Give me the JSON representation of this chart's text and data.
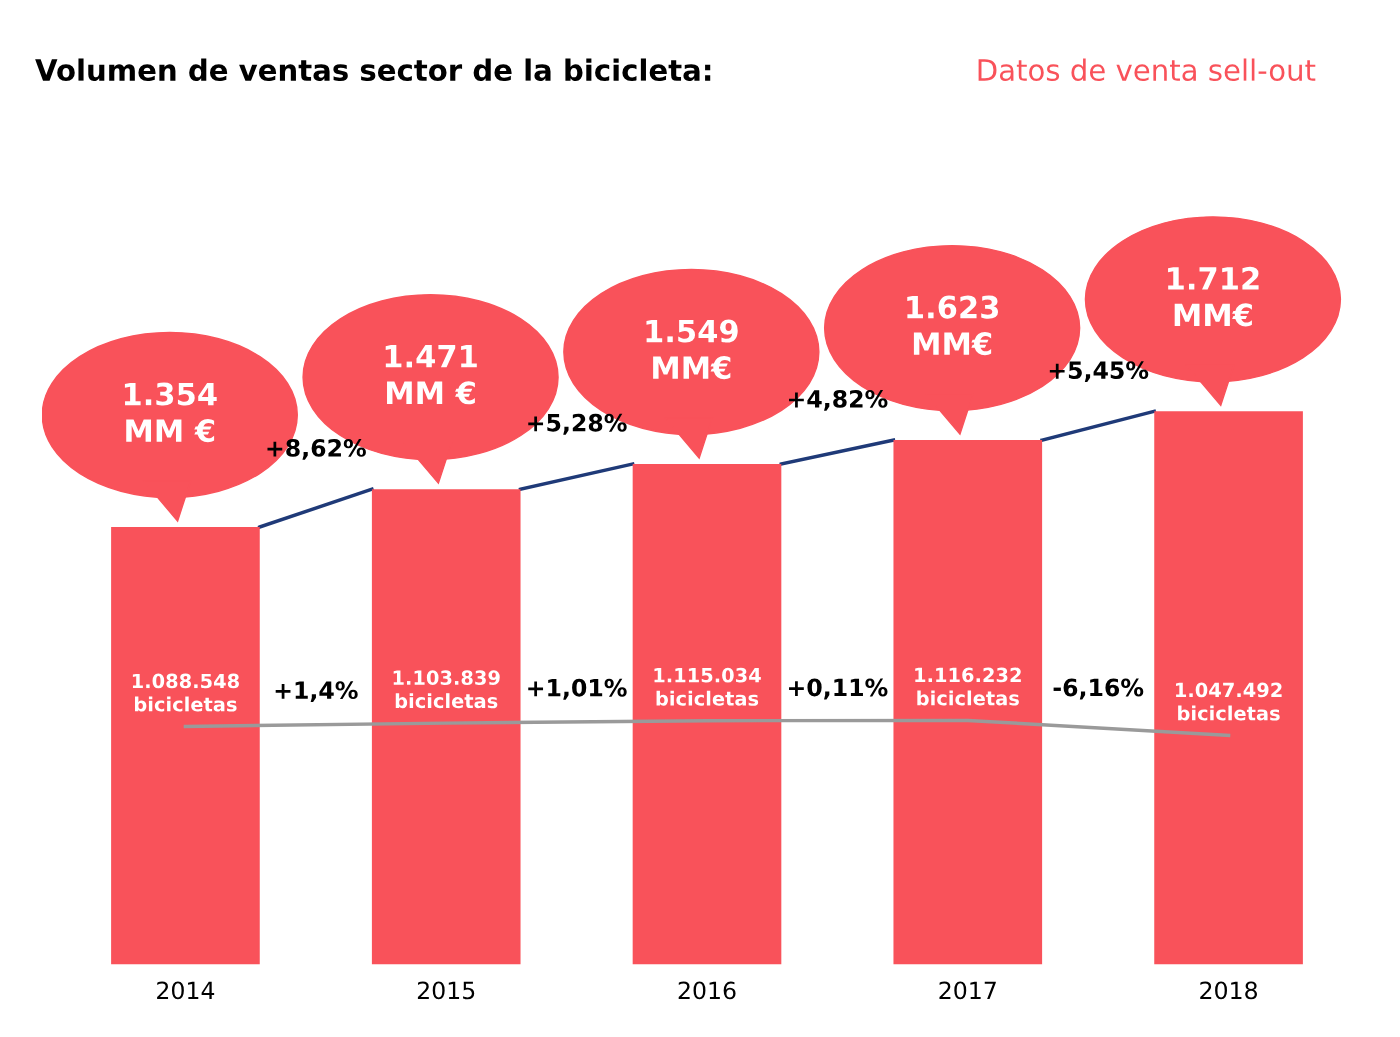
{
  "chart_data": {
    "type": "bar",
    "title": "Volumen de ventas sector de la bicicleta:",
    "subtitle": "Datos de venta sell-out",
    "categories": [
      "2014",
      "2015",
      "2016",
      "2017",
      "2018"
    ],
    "tick_labels": "x",
    "grid": false,
    "series": [
      {
        "color": "#f9525a",
        "values": [
          1354,
          1471,
          1549,
          1623,
          1712
        ],
        "value_labels": [
          "1.354\nMM €",
          "1.471\nMM €",
          "1.549\nMM€",
          "1.623\nMM€",
          "1.712\nMM€"
        ]
      },
      {
        "type": "line",
        "axis": "y2",
        "color": "#9a9a9a",
        "values": [
          1088548,
          1103839,
          1115034,
          1116232,
          1047492
        ],
        "value_labels": [
          "1.088.548\nbicicletas",
          "1.103.839\nbicicletas",
          "1.115.034\nbicicletas",
          "1.116.232\nbicicletas",
          "1.047.492\nbicicletas"
        ]
      }
    ],
    "annotations": [
      "+8,62%",
      "+5,28%",
      "+4,82%",
      "+5,45%",
      "+1,4%",
      "+1,01%",
      "+0,11%",
      "-6,16%"
    ]
  }
}
